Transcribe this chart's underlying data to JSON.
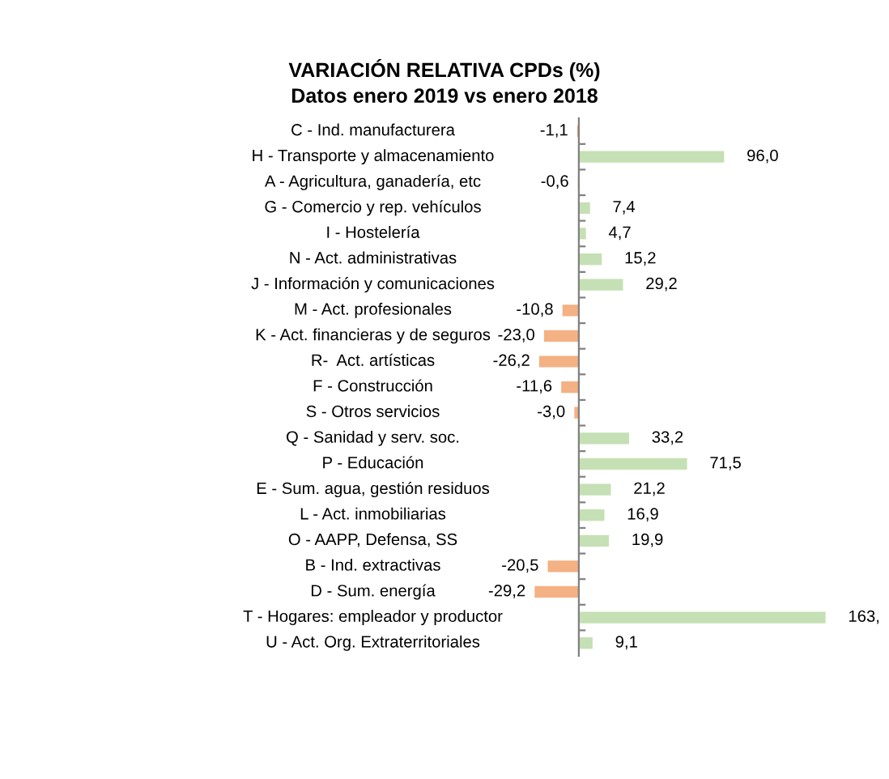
{
  "chart_data": {
    "type": "bar",
    "orientation": "horizontal",
    "title": "VARIACIÓN RELATIVA CPDs (%)",
    "subtitle": "Datos enero 2019 vs enero 2018",
    "categories": [
      "C - Ind. manufacturera",
      "H - Transporte y almacenamiento",
      "A - Agricultura, ganadería, etc",
      "G - Comercio y rep. vehículos",
      "I - Hostelería",
      "N - Act. administrativas",
      "J - Información y comunicaciones",
      "M - Act. profesionales",
      "K - Act. financieras y de seguros",
      "R-  Act. artísticas",
      "F - Construcción",
      "S - Otros servicios",
      "Q - Sanidad y serv. soc.",
      "P - Educación",
      "E - Sum. agua, gestión residuos",
      "L - Act. inmobiliarias",
      "O - AAPP, Defensa, SS",
      "B - Ind. extractivas",
      "D - Sum. energía",
      "T - Hogares: empleador y productor",
      "U - Act. Org. Extraterritoriales"
    ],
    "values": [
      -1.1,
      96.0,
      -0.6,
      7.4,
      4.7,
      15.2,
      29.2,
      -10.8,
      -23.0,
      -26.2,
      -11.6,
      -3.0,
      33.2,
      71.5,
      21.2,
      16.9,
      19.9,
      -20.5,
      -29.2,
      163,
      9.1
    ],
    "value_labels": [
      "-1,1",
      "96,0",
      "-0,6",
      "7,4",
      "4,7",
      "15,2",
      "29,2",
      "-10,8",
      "-23,0",
      "-26,2",
      "-11,6",
      "-3,0",
      "33,2",
      "71,5",
      "21,2",
      "16,9",
      "19,9",
      "-20,5",
      "-29,2",
      "163,",
      "9,1"
    ],
    "colors": [
      "#f4b183",
      "#c5e0b4",
      "#f4b183",
      "#c5e0b4",
      "#c5e0b4",
      "#c5e0b4",
      "#c5e0b4",
      "#f4b183",
      "#f4b183",
      "#f4b183",
      "#f4b183",
      "#f4b183",
      "#c5e0b4",
      "#c5e0b4",
      "#c5e0b4",
      "#c5e0b4",
      "#c5e0b4",
      "#f4b183",
      "#f4b183",
      "#c5e0b4",
      "#c5e0b4"
    ],
    "grid": false,
    "legend": false
  }
}
